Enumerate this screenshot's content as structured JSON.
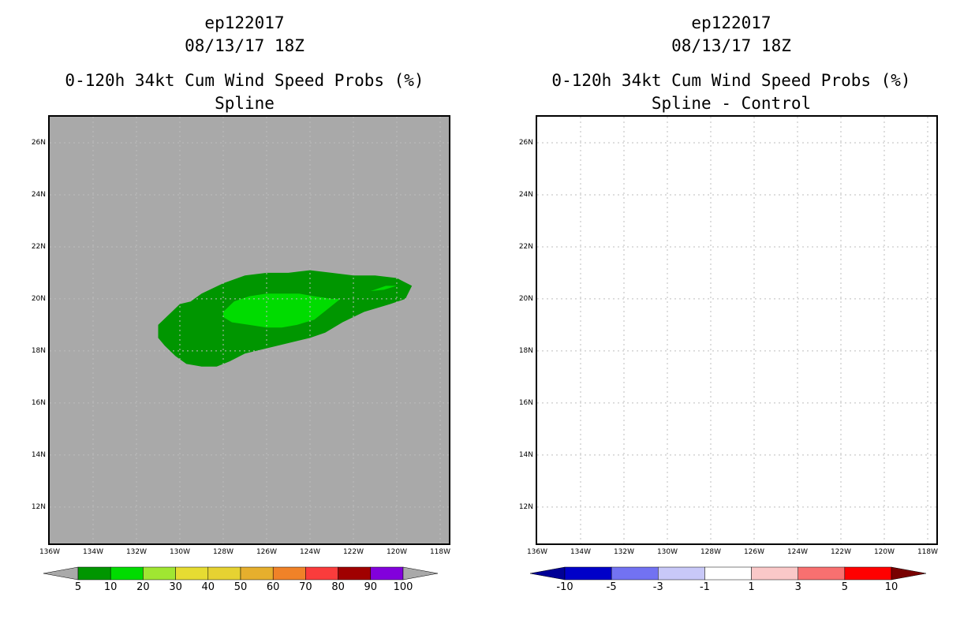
{
  "left_panel": {
    "storm_id": "ep122017",
    "datetime": "08/13/17 18Z",
    "product": "0-120h 34kt Cum Wind Speed Probs (%)",
    "subtitle": "Spline",
    "background_color": "#a9a9a9",
    "colorbar": {
      "labels": [
        "5",
        "10",
        "20",
        "30",
        "40",
        "50",
        "60",
        "70",
        "80",
        "90",
        "100"
      ],
      "colors": [
        "#009600",
        "#00dc00",
        "#a0e632",
        "#e6dc32",
        "#e6d232",
        "#e6af2d",
        "#f08228",
        "#fa3c3c",
        "#a00000",
        "#8200dc"
      ],
      "under_color": "#a9a9a9",
      "over_color": "#a9a9a9"
    }
  },
  "right_panel": {
    "storm_id": "ep122017",
    "datetime": "08/13/17 18Z",
    "product": "0-120h 34kt Cum Wind Speed Probs (%)",
    "subtitle": "Spline - Control",
    "background_color": "#ffffff",
    "colorbar": {
      "labels": [
        "-10",
        "-5",
        "-3",
        "-1",
        "1",
        "3",
        "5",
        "10"
      ],
      "colors": [
        "#0000c8",
        "#7272f2",
        "#c8c8f8",
        "#ffffff",
        "#fac8c8",
        "#f87070",
        "#ff0000"
      ],
      "under_color": "#000096",
      "over_color": "#780000"
    }
  },
  "axes": {
    "lat_labels": [
      "26N",
      "24N",
      "22N",
      "20N",
      "18N",
      "16N",
      "14N",
      "12N"
    ],
    "lat_values": [
      26,
      24,
      22,
      20,
      18,
      16,
      14,
      12
    ],
    "lon_labels": [
      "136W",
      "134W",
      "132W",
      "130W",
      "128W",
      "126W",
      "124W",
      "122W",
      "120W",
      "118W"
    ],
    "lon_values": [
      -136,
      -134,
      -132,
      -130,
      -128,
      -126,
      -124,
      -122,
      -120,
      -118
    ],
    "lat_range": [
      10.6,
      27.0
    ],
    "lon_range": [
      -136.0,
      -117.6
    ]
  },
  "probability_contours": [
    {
      "level": "5-10%",
      "color": "#009600",
      "points": [
        [
          -131.0,
          19.0
        ],
        [
          -130.5,
          19.4
        ],
        [
          -130.0,
          19.8
        ],
        [
          -129.5,
          19.9
        ],
        [
          -129.0,
          20.2
        ],
        [
          -128.0,
          20.6
        ],
        [
          -127.0,
          20.9
        ],
        [
          -126.0,
          21.0
        ],
        [
          -125.0,
          21.0
        ],
        [
          -124.0,
          21.1
        ],
        [
          -123.0,
          21.0
        ],
        [
          -122.0,
          20.9
        ],
        [
          -121.0,
          20.9
        ],
        [
          -120.0,
          20.8
        ],
        [
          -119.3,
          20.5
        ],
        [
          -119.6,
          20.0
        ],
        [
          -120.3,
          19.8
        ],
        [
          -121.5,
          19.5
        ],
        [
          -122.5,
          19.1
        ],
        [
          -123.3,
          18.7
        ],
        [
          -124.0,
          18.5
        ],
        [
          -125.0,
          18.3
        ],
        [
          -126.0,
          18.1
        ],
        [
          -127.0,
          17.9
        ],
        [
          -127.7,
          17.6
        ],
        [
          -128.3,
          17.4
        ],
        [
          -129.0,
          17.4
        ],
        [
          -129.7,
          17.5
        ],
        [
          -130.2,
          17.8
        ],
        [
          -130.7,
          18.2
        ],
        [
          -131.0,
          18.5
        ]
      ]
    },
    {
      "level": "10-20%",
      "color": "#00dc00",
      "points": [
        [
          -128.0,
          19.5
        ],
        [
          -127.5,
          19.9
        ],
        [
          -126.8,
          20.1
        ],
        [
          -126.0,
          20.2
        ],
        [
          -125.2,
          20.2
        ],
        [
          -124.5,
          20.2
        ],
        [
          -123.8,
          20.1
        ],
        [
          -123.0,
          20.0
        ],
        [
          -122.6,
          20.0
        ],
        [
          -123.2,
          19.6
        ],
        [
          -123.8,
          19.2
        ],
        [
          -124.6,
          19.0
        ],
        [
          -125.3,
          18.9
        ],
        [
          -126.0,
          18.9
        ],
        [
          -126.8,
          19.0
        ],
        [
          -127.6,
          19.1
        ],
        [
          -128.0,
          19.3
        ]
      ]
    },
    {
      "level": "10-20% (east)",
      "color": "#00dc00",
      "points": [
        [
          -121.2,
          20.3
        ],
        [
          -120.5,
          20.5
        ],
        [
          -120.0,
          20.5
        ],
        [
          -120.6,
          20.35
        ]
      ]
    }
  ]
}
